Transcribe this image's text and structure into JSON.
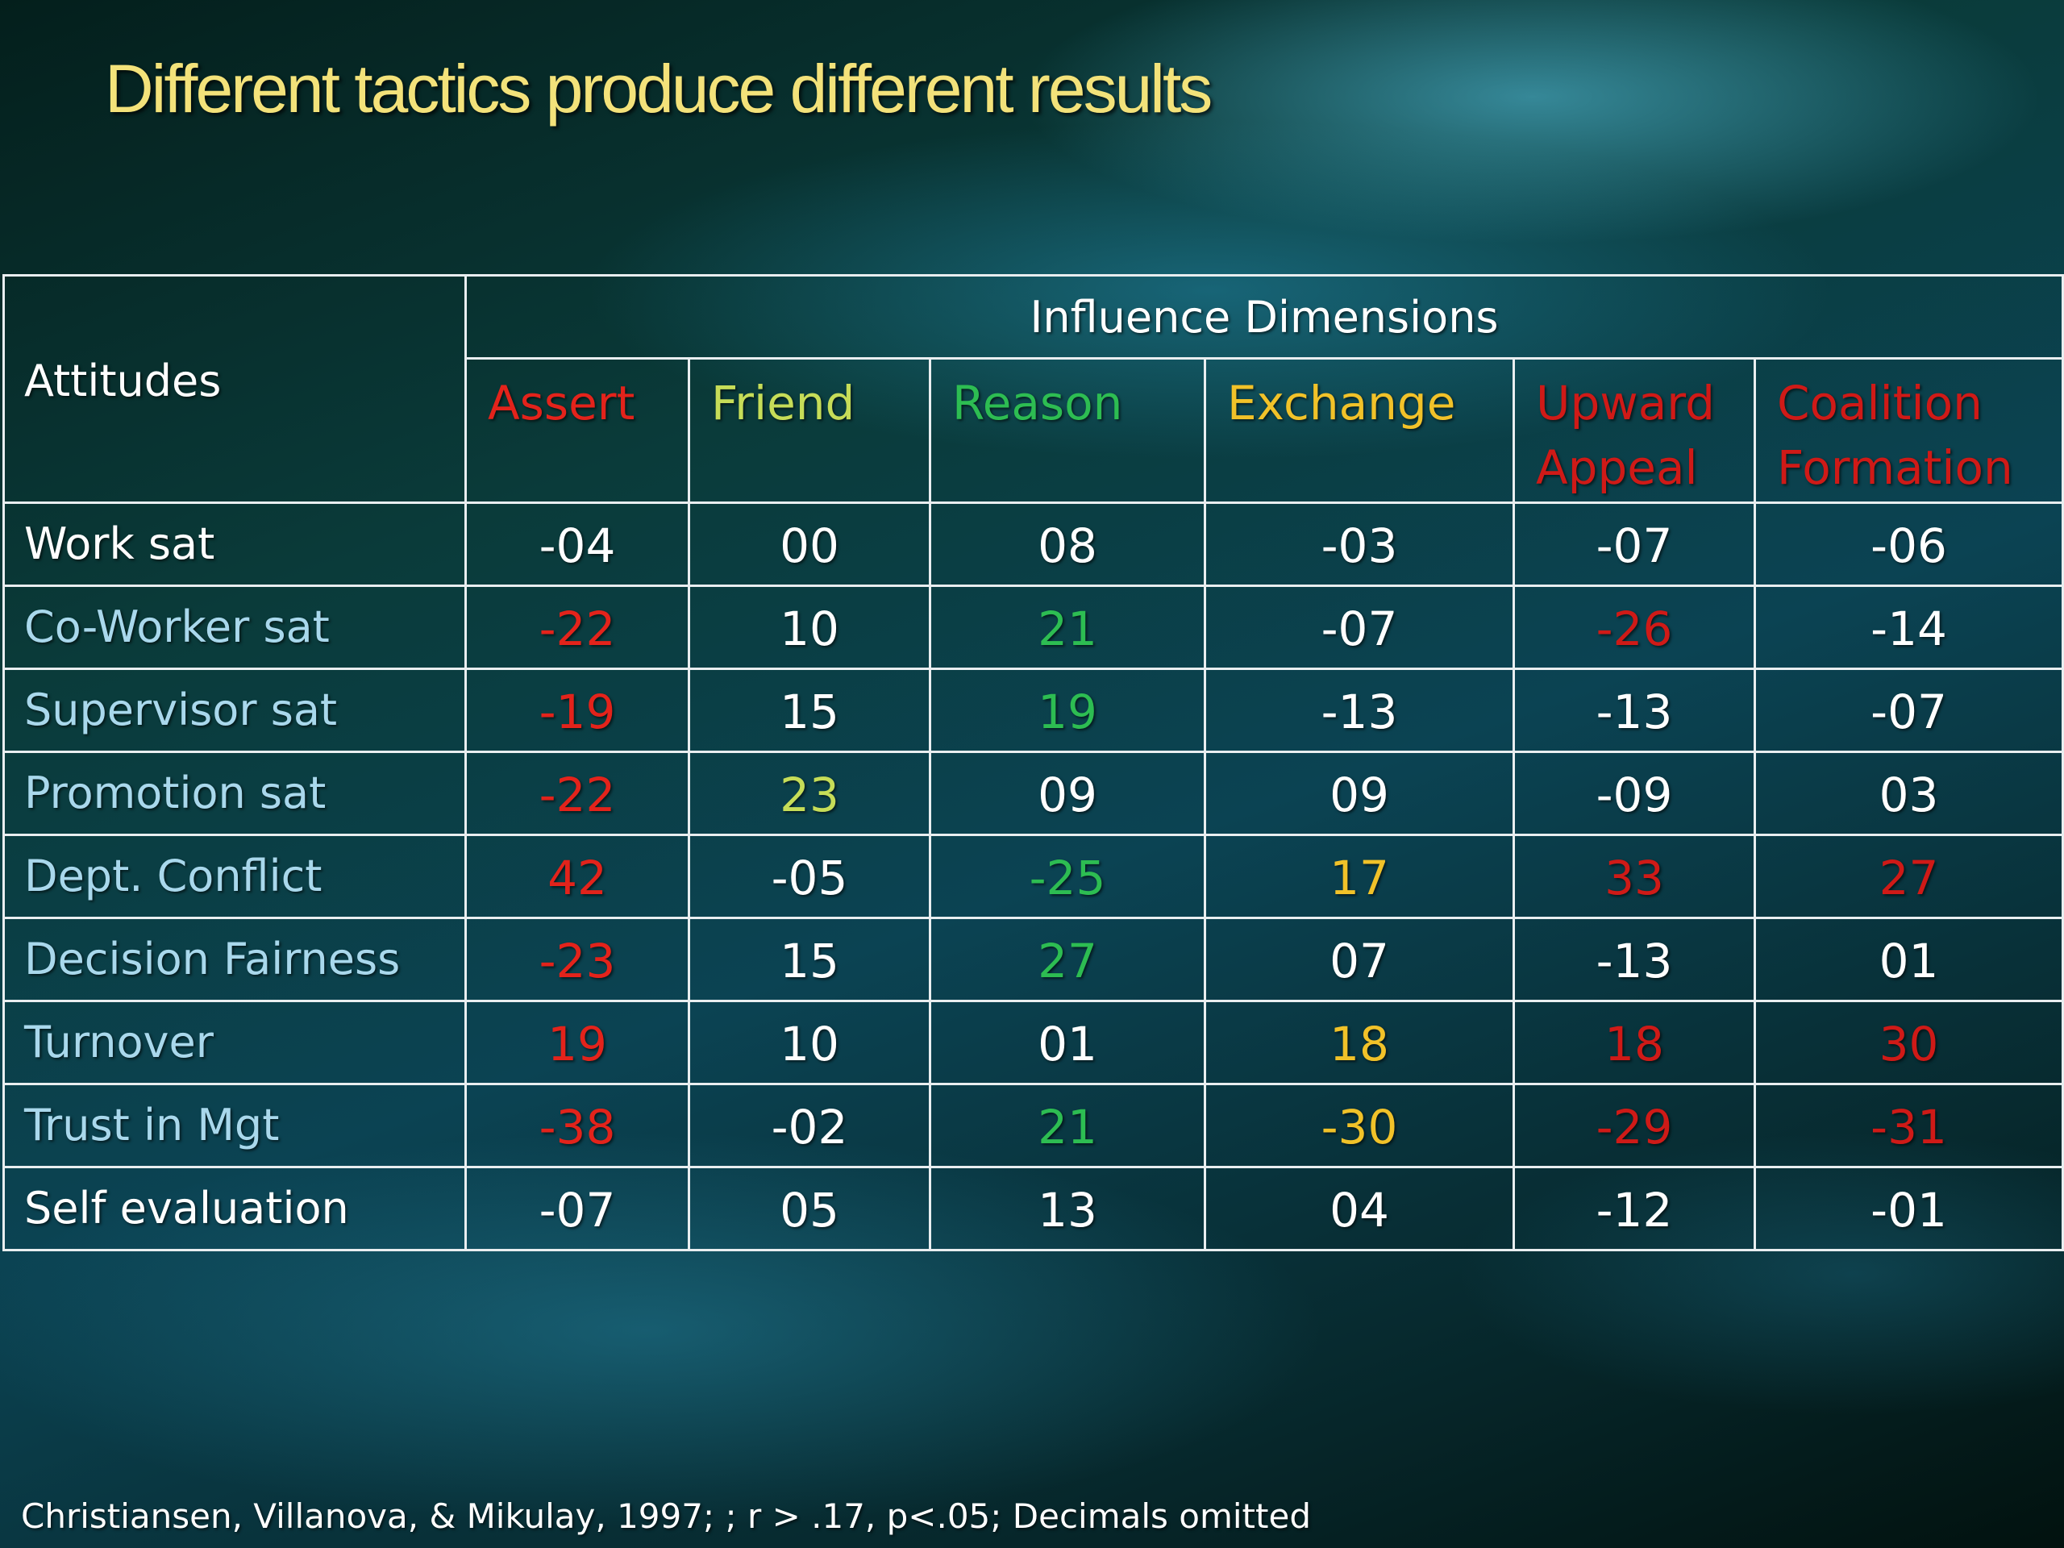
{
  "title": "Different tactics produce different results",
  "table": {
    "corner_label": "Attitudes",
    "group_header": "Influence Dimensions",
    "columns": [
      {
        "label": "Assert",
        "color": "#e3231b"
      },
      {
        "label": "Friend",
        "color": "#c6dd58"
      },
      {
        "label": "Reason",
        "color": "#2dbd52"
      },
      {
        "label": "Exchange",
        "color": "#f1c229"
      },
      {
        "label": "Upward Appeal",
        "color": "#cf1a17"
      },
      {
        "label": "Coalition Formation",
        "color": "#cf1a17"
      }
    ],
    "rows": [
      {
        "label": "Work sat",
        "values": [
          "-04",
          "00",
          "08",
          "-03",
          "-07",
          "-06"
        ]
      },
      {
        "label": "Co-Worker sat",
        "values": [
          "-22",
          "10",
          "21",
          "-07",
          "-26",
          "-14"
        ]
      },
      {
        "label": "Supervisor sat",
        "values": [
          "-19",
          "15",
          "19",
          "-13",
          "-13",
          "-07"
        ]
      },
      {
        "label": "Promotion sat",
        "values": [
          "-22",
          "23",
          "09",
          "09",
          "-09",
          "03"
        ]
      },
      {
        "label": "Dept. Conflict",
        "values": [
          "42",
          "-05",
          "-25",
          "17",
          "33",
          "27"
        ]
      },
      {
        "label": "Decision Fairness",
        "values": [
          "-23",
          "15",
          "27",
          "07",
          "-13",
          "01"
        ]
      },
      {
        "label": "Turnover",
        "values": [
          "19",
          "10",
          "01",
          "18",
          "18",
          "30"
        ]
      },
      {
        "label": "Trust in Mgt",
        "values": [
          "-38",
          "-02",
          "21",
          "-30",
          "-29",
          "-31"
        ]
      },
      {
        "label": "Self evaluation",
        "values": [
          "-07",
          "05",
          "13",
          "04",
          "-12",
          "-01"
        ]
      }
    ]
  },
  "footnote": "Christiansen, Villanova, & Mikulay, 1997; ; r > .17, p<.05; Decimals omitted"
}
